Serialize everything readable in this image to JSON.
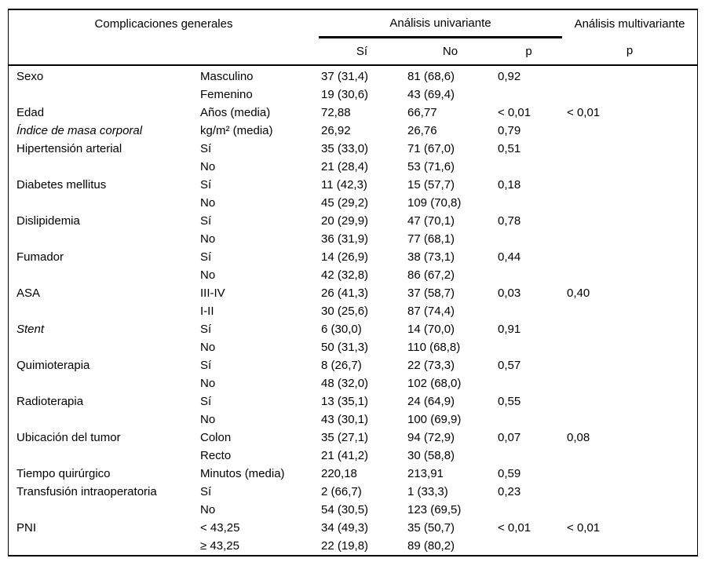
{
  "table": {
    "header": {
      "group_left": "Complicaciones generales",
      "group_univariante": "Análisis univariante",
      "group_multivariante": "Análisis multivariante",
      "sub_si": "Sí",
      "sub_no": "No",
      "sub_p_univariante": "p",
      "sub_p_multivariante": "p"
    },
    "columns": [
      "variable",
      "category",
      "si",
      "no",
      "p",
      "p_multi"
    ],
    "rows": [
      {
        "variable": "Sexo",
        "italic": false,
        "category": "Masculino",
        "si": "37 (31,4)",
        "no": "81 (68,6)",
        "p": "0,92",
        "p_multi": ""
      },
      {
        "variable": "",
        "italic": false,
        "category": "Femenino",
        "si": "19 (30,6)",
        "no": "43 (69,4)",
        "p": "",
        "p_multi": ""
      },
      {
        "variable": "Edad",
        "italic": false,
        "category": "Años (media)",
        "si": "72,88",
        "no": "66,77",
        "p": "< 0,01",
        "p_multi": "< 0,01"
      },
      {
        "variable": "Índice de masa corporal",
        "italic": true,
        "category": "kg/m² (media)",
        "si": "26,92",
        "no": "26,76",
        "p": "0,79",
        "p_multi": ""
      },
      {
        "variable": "Hipertensión arterial",
        "italic": false,
        "category": "Sí",
        "si": "35 (33,0)",
        "no": "71 (67,0)",
        "p": "0,51",
        "p_multi": ""
      },
      {
        "variable": "",
        "italic": false,
        "category": "No",
        "si": "21 (28,4)",
        "no": "53 (71,6)",
        "p": "",
        "p_multi": ""
      },
      {
        "variable": "Diabetes mellitus",
        "italic": false,
        "category": "Sí",
        "si": "11 (42,3)",
        "no": "15 (57,7)",
        "p": "0,18",
        "p_multi": ""
      },
      {
        "variable": "",
        "italic": false,
        "category": "No",
        "si": "45 (29,2)",
        "no": "109 (70,8)",
        "p": "",
        "p_multi": ""
      },
      {
        "variable": "Dislipidemia",
        "italic": false,
        "category": "Sí",
        "si": "20 (29,9)",
        "no": "47 (70,1)",
        "p": "0,78",
        "p_multi": ""
      },
      {
        "variable": "",
        "italic": false,
        "category": "No",
        "si": "36 (31,9)",
        "no": "77 (68,1)",
        "p": "",
        "p_multi": ""
      },
      {
        "variable": "Fumador",
        "italic": false,
        "category": "Sí",
        "si": "14 (26,9)",
        "no": "38 (73,1)",
        "p": "0,44",
        "p_multi": ""
      },
      {
        "variable": "",
        "italic": false,
        "category": "No",
        "si": "42 (32,8)",
        "no": "86 (67,2)",
        "p": "",
        "p_multi": ""
      },
      {
        "variable": "ASA",
        "italic": false,
        "category": "III-IV",
        "si": "26 (41,3)",
        "no": "37 (58,7)",
        "p": "0,03",
        "p_multi": "0,40"
      },
      {
        "variable": "",
        "italic": false,
        "category": "I-II",
        "si": "30 (25,6)",
        "no": "87 (74,4)",
        "p": "",
        "p_multi": ""
      },
      {
        "variable": "Stent",
        "italic": true,
        "category": "Sí",
        "si": "6 (30,0)",
        "no": "14 (70,0)",
        "p": "0,91",
        "p_multi": ""
      },
      {
        "variable": "",
        "italic": false,
        "category": "No",
        "si": "50 (31,3)",
        "no": "110 (68,8)",
        "p": "",
        "p_multi": ""
      },
      {
        "variable": "Quimioterapia",
        "italic": false,
        "category": "Sí",
        "si": "8 (26,7)",
        "no": "22 (73,3)",
        "p": "0,57",
        "p_multi": ""
      },
      {
        "variable": "",
        "italic": false,
        "category": "No",
        "si": "48 (32,0)",
        "no": "102 (68,0)",
        "p": "",
        "p_multi": ""
      },
      {
        "variable": "Radioterapia",
        "italic": false,
        "category": "Sí",
        "si": "13 (35,1)",
        "no": "24 (64,9)",
        "p": "0,55",
        "p_multi": ""
      },
      {
        "variable": "",
        "italic": false,
        "category": "No",
        "si": "43 (30,1)",
        "no": "100 (69,9)",
        "p": "",
        "p_multi": ""
      },
      {
        "variable": "Ubicación del tumor",
        "italic": false,
        "category": "Colon",
        "si": "35 (27,1)",
        "no": "94 (72,9)",
        "p": "0,07",
        "p_multi": "0,08"
      },
      {
        "variable": "",
        "italic": false,
        "category": "Recto",
        "si": "21 (41,2)",
        "no": "30 (58,8)",
        "p": "",
        "p_multi": ""
      },
      {
        "variable": "Tiempo quirúrgico",
        "italic": false,
        "category": "Minutos (media)",
        "si": "220,18",
        "no": "213,91",
        "p": "0,59",
        "p_multi": ""
      },
      {
        "variable": "Transfusión intraoperatoria",
        "italic": false,
        "category": "Sí",
        "si": "2 (66,7)",
        "no": "1 (33,3)",
        "p": "0,23",
        "p_multi": ""
      },
      {
        "variable": "",
        "italic": false,
        "category": "No",
        "si": "54 (30,5)",
        "no": "123 (69,5)",
        "p": "",
        "p_multi": ""
      },
      {
        "variable": "PNI",
        "italic": false,
        "category": "< 43,25",
        "si": "34 (49,3)",
        "no": "35 (50,7)",
        "p": "< 0,01",
        "p_multi": "< 0,01"
      },
      {
        "variable": "",
        "italic": false,
        "category": "≥ 43,25",
        "si": "22 (19,8)",
        "no": "89 (80,2)",
        "p": "",
        "p_multi": ""
      }
    ]
  }
}
